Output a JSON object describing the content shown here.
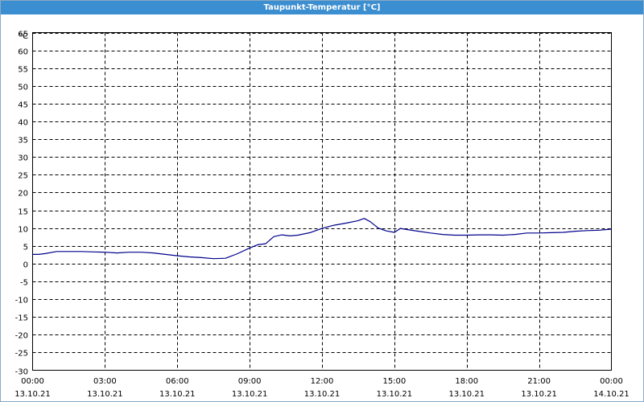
{
  "window": {
    "title": "Taupunkt-Temperatur [°C]"
  },
  "chart_data": {
    "type": "line",
    "title": "Taupunkt-Temperatur [°C]",
    "ylabel": "°C",
    "xlabel": "",
    "ylim": [
      -30,
      65
    ],
    "xlim": [
      "13.10.21 00:00",
      "14.10.21 00:00"
    ],
    "grid": true,
    "yticks": [
      "65",
      "60",
      "55",
      "50",
      "45",
      "40",
      "35",
      "30",
      "25",
      "20",
      "15",
      "10",
      "5",
      "0",
      "-5",
      "-10",
      "-15",
      "-20",
      "-25",
      "-30"
    ],
    "xticks": [
      {
        "time": "00:00",
        "date": "13.10.21"
      },
      {
        "time": "03:00",
        "date": "13.10.21"
      },
      {
        "time": "06:00",
        "date": "13.10.21"
      },
      {
        "time": "09:00",
        "date": "13.10.21"
      },
      {
        "time": "12:00",
        "date": "13.10.21"
      },
      {
        "time": "15:00",
        "date": "13.10.21"
      },
      {
        "time": "18:00",
        "date": "13.10.21"
      },
      {
        "time": "21:00",
        "date": "13.10.21"
      },
      {
        "time": "00:00",
        "date": "14.10.21"
      }
    ],
    "series": [
      {
        "color": "#00008b",
        "x": [
          "13.10.21 00:00",
          "13.10.21 00:15",
          "13.10.21 00:30",
          "13.10.21 01:00",
          "13.10.21 01:30",
          "13.10.21 02:00",
          "13.10.21 02:30",
          "13.10.21 03:00",
          "13.10.21 03:30",
          "13.10.21 04:00",
          "13.10.21 04:30",
          "13.10.21 05:00",
          "13.10.21 05:30",
          "13.10.21 06:00",
          "13.10.21 06:30",
          "13.10.21 07:00",
          "13.10.21 07:30",
          "13.10.21 08:00",
          "13.10.21 08:30",
          "13.10.21 09:00",
          "13.10.21 09:20",
          "13.10.21 09:40",
          "13.10.21 10:00",
          "13.10.21 10:20",
          "13.10.21 10:40",
          "13.10.21 11:00",
          "13.10.21 11:30",
          "13.10.21 12:00",
          "13.10.21 12:30",
          "13.10.21 13:00",
          "13.10.21 13:30",
          "13.10.21 13:45",
          "13.10.21 14:00",
          "13.10.21 14:20",
          "13.10.21 14:40",
          "13.10.21 15:00",
          "13.10.21 15:15",
          "13.10.21 15:30",
          "13.10.21 16:00",
          "13.10.21 16:30",
          "13.10.21 17:00",
          "13.10.21 17:30",
          "13.10.21 18:00",
          "13.10.21 18:30",
          "13.10.21 19:00",
          "13.10.21 19:30",
          "13.10.21 20:00",
          "13.10.21 20:30",
          "13.10.21 21:00",
          "13.10.21 21:30",
          "13.10.21 22:00",
          "13.10.21 22:30",
          "13.10.21 23:00",
          "13.10.21 23:30",
          "14.10.21 00:00"
        ],
        "values": [
          2.6,
          2.6,
          2.8,
          3.4,
          3.4,
          3.4,
          3.3,
          3.2,
          3.0,
          3.2,
          3.2,
          3.0,
          2.6,
          2.2,
          1.9,
          1.7,
          1.4,
          1.5,
          2.8,
          4.4,
          5.3,
          5.6,
          7.6,
          8.1,
          7.8,
          8.0,
          8.7,
          9.9,
          10.8,
          11.4,
          12.1,
          12.7,
          11.8,
          10.0,
          9.2,
          8.8,
          9.9,
          9.6,
          9.1,
          8.6,
          8.2,
          8.0,
          8.0,
          8.1,
          8.1,
          8.0,
          8.2,
          8.6,
          8.6,
          8.7,
          8.8,
          9.1,
          9.3,
          9.4,
          9.7
        ]
      }
    ]
  }
}
